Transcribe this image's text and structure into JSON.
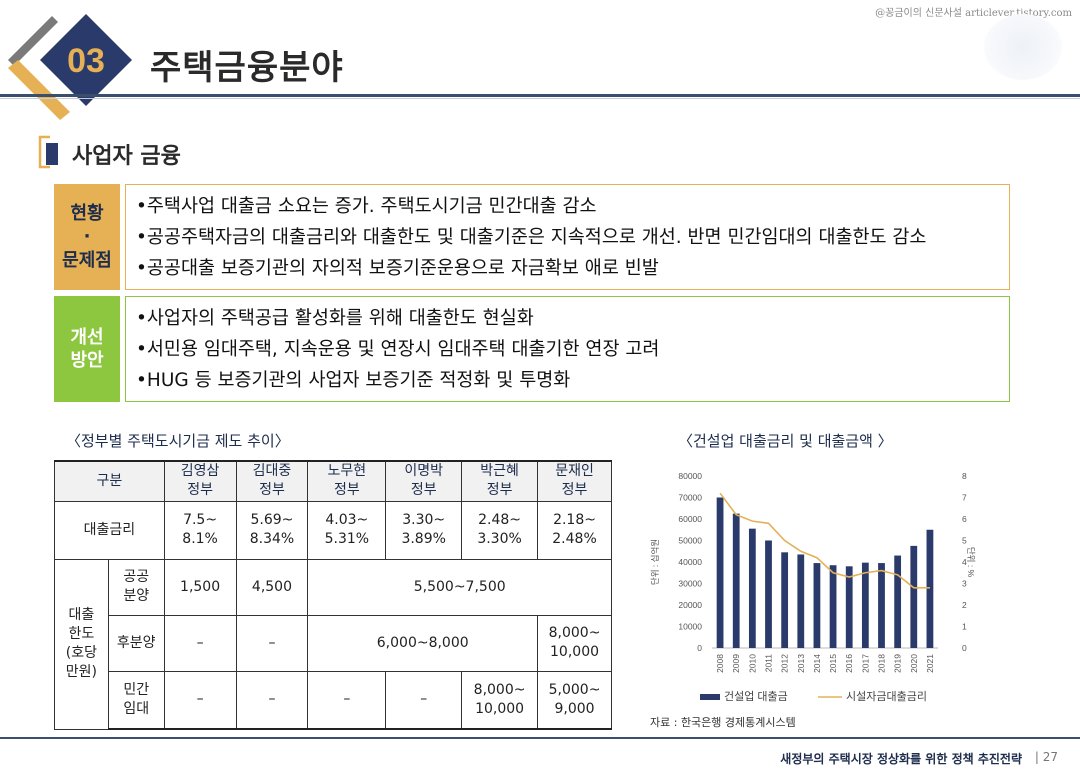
{
  "watermark": "@꽁금이의 신문사설 articlever.tistory.com",
  "header": {
    "number": "03",
    "title": "주택금융분야"
  },
  "subtitle": "사업자 금융",
  "status": {
    "label_top": "현황",
    "label_mid": "·",
    "label_bottom": "문제점",
    "items": [
      "•주택사업 대출금 소요는 증가. 주택도시기금 민간대출 감소",
      "•공공주택자금의 대출금리와 대출한도 및 대출기준은 지속적으로 개선. 반면 민간임대의 대출한도 감소",
      "•공공대출 보증기관의 자의적 보증기준운용으로 자금확보 애로 빈발"
    ]
  },
  "improve": {
    "label_top": "개선",
    "label_bottom": "방안",
    "items": [
      "•사업자의 주택공급 활성화를 위해 대출한도 현실화",
      "•서민용 임대주택, 지속운용 및 연장시 임대주택 대출기한 연장 고려",
      "•HUG 등 보증기관의 사업자 보증기준 적정화 및 투명화"
    ]
  },
  "table": {
    "title": "〈정부별 주택도시기금 제도 추이〉",
    "head": {
      "category": "구분",
      "gov1": "김영삼\n정부",
      "gov2": "김대중\n정부",
      "gov3": "노무현\n정부",
      "gov4": "이명박\n정부",
      "gov5": "박근혜\n정부",
      "gov6": "문재인\n정부"
    },
    "rate": {
      "label": "대출금리",
      "g1": "7.5~\n8.1%",
      "g2": "5.69~\n8.34%",
      "g3": "4.03~\n5.31%",
      "g4": "3.30~\n3.89%",
      "g5": "2.48~\n3.30%",
      "g6": "2.18~\n2.48%"
    },
    "limit_label": "대출\n한도\n(호당\n만원)",
    "public": {
      "label": "공공\n분양",
      "g1": "1,500",
      "g2": "4,500",
      "span": "5,500~7,500"
    },
    "later": {
      "label": "후분양",
      "g1": "–",
      "g2": "–",
      "span": "6,000~8,000",
      "g6": "8,000~\n10,000"
    },
    "private": {
      "label": "민간\n임대",
      "g1": "–",
      "g2": "–",
      "g3": "–",
      "g4": "–",
      "g5": "8,000~\n10,000",
      "g6": "5,000~\n9,000"
    }
  },
  "chart_title": "〈건설업 대출금리 및 대출금액 〉",
  "chart_data": {
    "type": "bar",
    "categories": [
      "2008",
      "2009",
      "2010",
      "2011",
      "2012",
      "2013",
      "2014",
      "2015",
      "2016",
      "2017",
      "2018",
      "2019",
      "2020",
      "2021"
    ],
    "series": [
      {
        "name": "건설업 대출금",
        "type": "bar",
        "axis": "left",
        "values": [
          70000,
          62500,
          55500,
          50000,
          44500,
          43500,
          39500,
          38500,
          38000,
          39700,
          39500,
          43000,
          47500,
          55000
        ]
      },
      {
        "name": "시설자금대출금리",
        "type": "line",
        "axis": "right",
        "values": [
          7.2,
          6.2,
          5.9,
          5.8,
          5.0,
          4.5,
          4.2,
          3.5,
          3.3,
          3.5,
          3.6,
          3.4,
          2.8,
          2.8
        ]
      }
    ],
    "yleft_ticks": [
      "0",
      "10000",
      "20000",
      "30000",
      "40000",
      "50000",
      "60000",
      "70000",
      "80000"
    ],
    "yright_ticks": [
      "0",
      "1",
      "2",
      "3",
      "4",
      "5",
      "6",
      "7",
      "8"
    ],
    "ylim_left": [
      0,
      80000
    ],
    "ylim_right": [
      0,
      8
    ],
    "ylabel_left": "단위 : 십억원",
    "ylabel_right": "단위 : %",
    "legend_position": "bottom"
  },
  "chart_source": "자료 : 한국은행 경제통계시스템",
  "footer": {
    "text": "새정부의 주택시장 정상화를 위한 정책 추진전략",
    "page": "| 27"
  },
  "colors": {
    "navy": "#2a3a6a",
    "gold": "#e6b054",
    "green": "#8dc63f",
    "line": "#e2b25a"
  }
}
